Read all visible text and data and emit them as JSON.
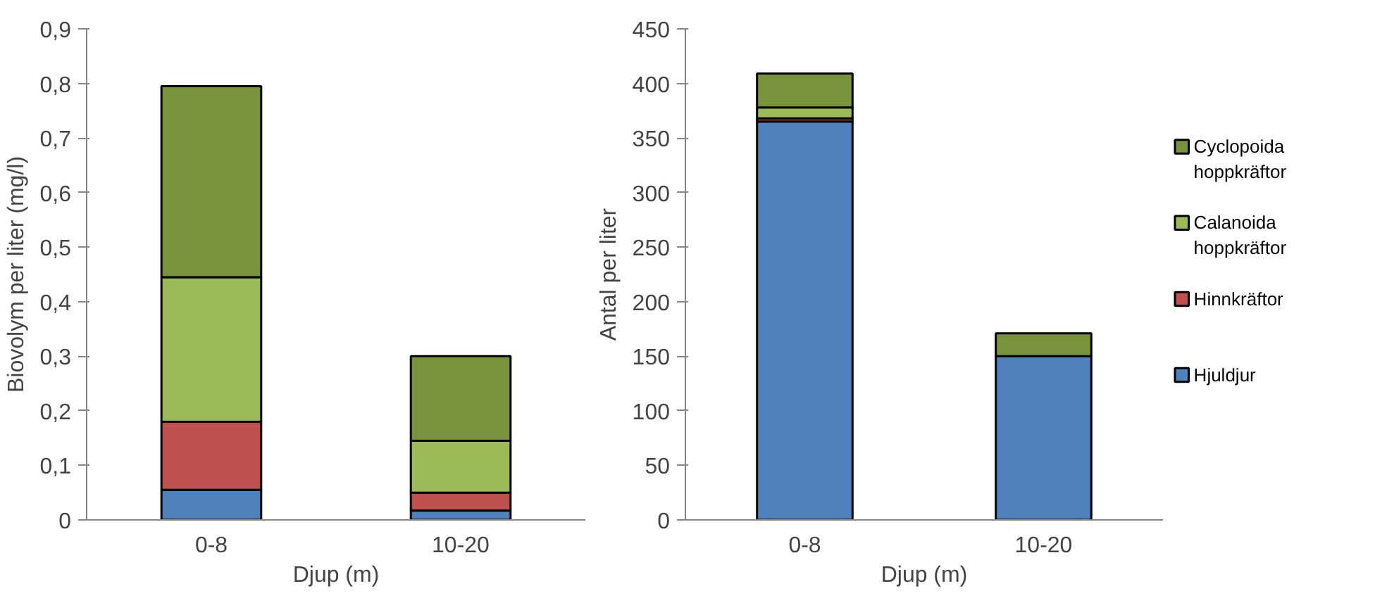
{
  "chart_data": [
    {
      "type": "bar",
      "stacked": true,
      "xlabel": "Djup (m)",
      "ylabel": "Biovolym per liter (mg/l)",
      "categories": [
        "0-8",
        "10-20"
      ],
      "ylim": [
        0,
        0.9
      ],
      "yticks": [
        0,
        {
          "value": 0.1,
          "label": "0,1"
        },
        {
          "value": 0.2,
          "label": "0,2"
        },
        {
          "value": 0.3,
          "label": "0,3"
        },
        {
          "value": 0.4,
          "label": "0,4"
        },
        {
          "value": 0.5,
          "label": "0,5"
        },
        {
          "value": 0.6,
          "label": "0,6"
        },
        {
          "value": 0.7,
          "label": "0,7"
        },
        {
          "value": 0.8,
          "label": "0,8"
        },
        {
          "value": 0.9,
          "label": "0,9"
        }
      ],
      "grid": false,
      "legend": false,
      "series": [
        {
          "color": "#4f81bd",
          "values": [
            0.055,
            0.017
          ]
        },
        {
          "color": "#c0504d",
          "values": [
            0.125,
            0.033
          ]
        },
        {
          "color": "#9bbb59",
          "values": [
            0.265,
            0.095
          ]
        },
        {
          "color": "#77933c",
          "values": [
            0.35,
            0.155
          ]
        }
      ]
    },
    {
      "type": "bar",
      "stacked": true,
      "xlabel": "Djup (m)",
      "ylabel": "Antal per liter",
      "categories": [
        "0-8",
        "10-20"
      ],
      "ylim": [
        0,
        450
      ],
      "yticks": [
        0,
        50,
        100,
        150,
        200,
        250,
        300,
        350,
        400,
        450
      ],
      "grid": false,
      "legend": "right",
      "series": [
        {
          "name": "Hjuldjur",
          "color": "#4f81bd",
          "values": [
            365,
            150
          ]
        },
        {
          "name": "Hinnkräftor",
          "color": "#c0504d",
          "values": [
            3,
            null
          ]
        },
        {
          "name": "Calanoida hoppkräftor",
          "color": "#9bbb59",
          "values": [
            10,
            null
          ]
        },
        {
          "name": "Cyclopoida hoppkräftor",
          "color": "#77933c",
          "values": [
            31,
            21
          ]
        }
      ]
    }
  ]
}
